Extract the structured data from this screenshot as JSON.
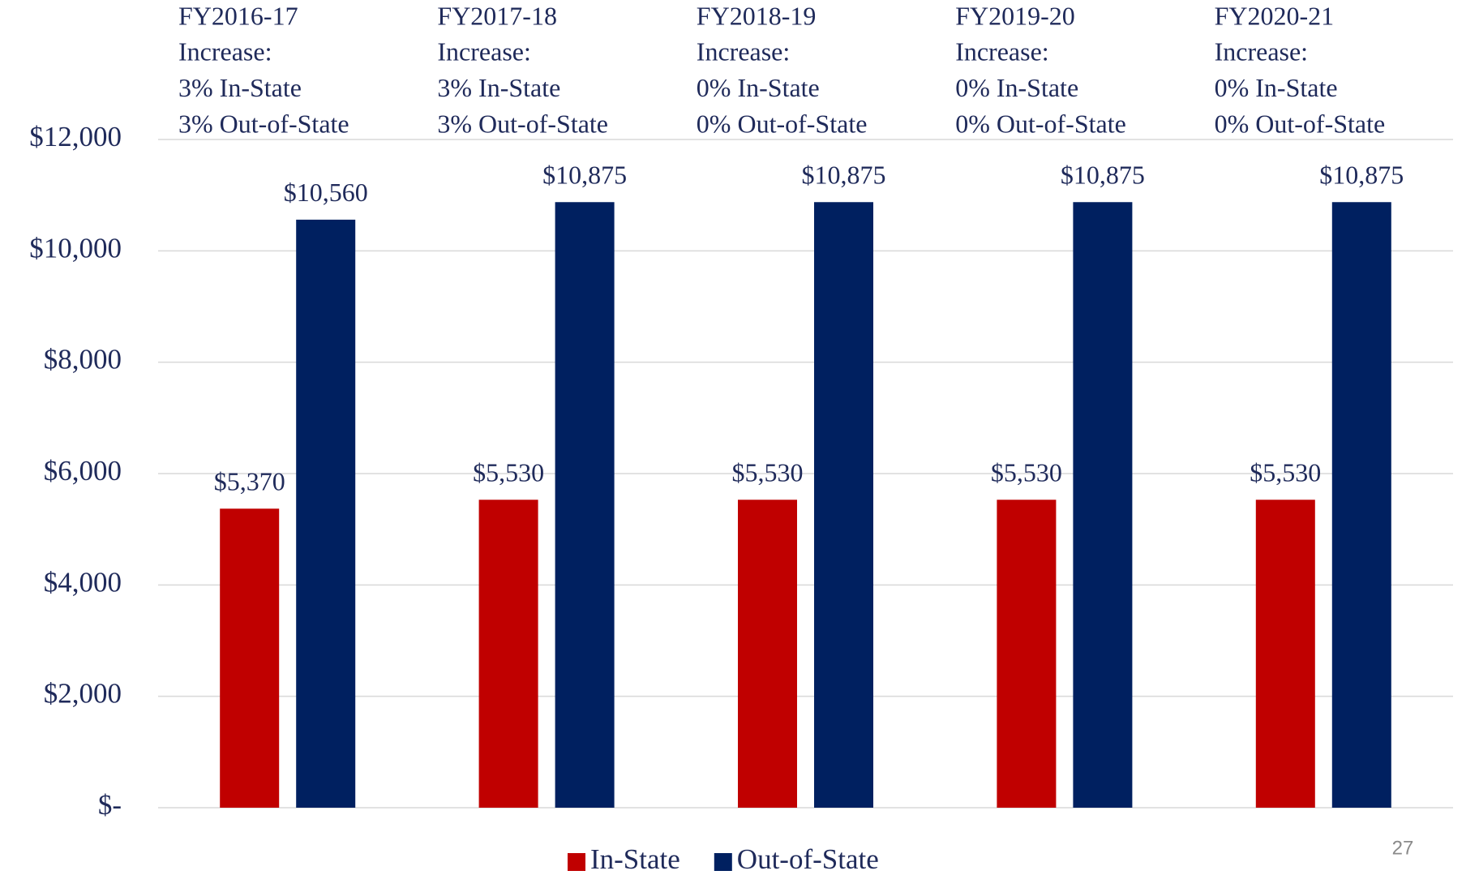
{
  "chart_data": {
    "type": "bar",
    "categories": [
      "FY2016-17",
      "FY2017-18",
      "FY2018-19",
      "FY2019-20",
      "FY2020-21"
    ],
    "annotations": [
      [
        "Increase:",
        "3% In-State",
        "3% Out-of-State"
      ],
      [
        "Increase:",
        "3% In-State",
        "3% Out-of-State"
      ],
      [
        "Increase:",
        "0% In-State",
        "0% Out-of-State"
      ],
      [
        "Increase:",
        "0% In-State",
        "0% Out-of-State"
      ],
      [
        "Increase:",
        "0% In-State",
        "0% Out-of-State"
      ]
    ],
    "series": [
      {
        "name": "In-State",
        "color": "#c00000",
        "values": [
          5370,
          5530,
          5530,
          5530,
          5530
        ],
        "value_labels": [
          "$5,370",
          "$5,530",
          "$5,530",
          "$5,530",
          "$5,530"
        ]
      },
      {
        "name": "Out-of-State",
        "color": "#002060",
        "values": [
          10560,
          10875,
          10875,
          10875,
          10875
        ],
        "value_labels": [
          "$10,560",
          "$10,875",
          "$10,875",
          "$10,875",
          "$10,875"
        ]
      }
    ],
    "ylim": [
      0,
      12000
    ],
    "yticks": [
      {
        "value": 0,
        "label": "$-"
      },
      {
        "value": 2000,
        "label": "$2,000"
      },
      {
        "value": 4000,
        "label": "$4,000"
      },
      {
        "value": 6000,
        "label": "$6,000"
      },
      {
        "value": 8000,
        "label": "$8,000"
      },
      {
        "value": 10000,
        "label": "$10,000"
      },
      {
        "value": 12000,
        "label": "$12,000"
      }
    ],
    "grid": true,
    "legend": "bottom",
    "page_number": "27"
  }
}
